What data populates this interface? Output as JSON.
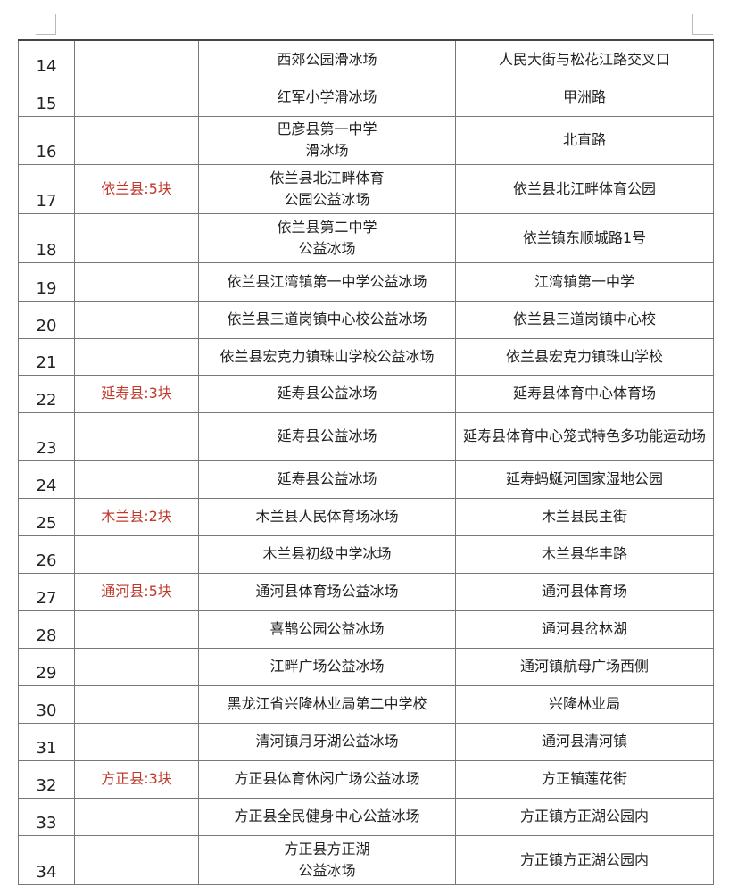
{
  "rows": [
    {
      "no": "14",
      "county": "",
      "name": "西郊公园滑冰场",
      "address": "人民大街与松花江路交叉口"
    },
    {
      "no": "15",
      "county": "",
      "name": "红军小学滑冰场",
      "address": "甲洲路"
    },
    {
      "no": "16",
      "county": "",
      "name": "巴彦县第一中学\n滑冰场",
      "address": "北直路"
    },
    {
      "no": "17",
      "county": "依兰县:5块",
      "name": "依兰县北江畔体育\n公园公益冰场",
      "address": "依兰县北江畔体育公园"
    },
    {
      "no": "18",
      "county": "",
      "name": "依兰县第二中学\n公益冰场",
      "address": "依兰镇东顺城路1号"
    },
    {
      "no": "19",
      "county": "",
      "name": "依兰县江湾镇第一中学公益冰场",
      "address": "江湾镇第一中学"
    },
    {
      "no": "20",
      "county": "",
      "name": "依兰县三道岗镇中心校公益冰场",
      "address": "依兰县三道岗镇中心校"
    },
    {
      "no": "21",
      "county": "",
      "name": "依兰县宏克力镇珠山学校公益冰场",
      "address": "依兰县宏克力镇珠山学校"
    },
    {
      "no": "22",
      "county": "延寿县:3块",
      "name": "延寿县公益冰场",
      "address": "延寿县体育中心体育场"
    },
    {
      "no": "23",
      "county": "",
      "name": "延寿县公益冰场",
      "address": "延寿县体育中心笼式特色多功能运动场"
    },
    {
      "no": "24",
      "county": "",
      "name": "延寿县公益冰场",
      "address": "延寿蚂蜒河国家湿地公园"
    },
    {
      "no": "25",
      "county": "木兰县:2块",
      "name": "木兰县人民体育场冰场",
      "address": "木兰县民主街"
    },
    {
      "no": "26",
      "county": "",
      "name": "木兰县初级中学冰场",
      "address": "木兰县华丰路"
    },
    {
      "no": "27",
      "county": "通河县:5块",
      "name": "通河县体育场公益冰场",
      "address": "通河县体育场"
    },
    {
      "no": "28",
      "county": "",
      "name": "喜鹊公园公益冰场",
      "address": "通河县岔林湖"
    },
    {
      "no": "29",
      "county": "",
      "name": "江畔广场公益冰场",
      "address": "通河镇航母广场西侧"
    },
    {
      "no": "30",
      "county": "",
      "name": "黑龙江省兴隆林业局第二中学校",
      "address": "兴隆林业局"
    },
    {
      "no": "31",
      "county": "",
      "name": "清河镇月牙湖公益冰场",
      "address": "通河县清河镇"
    },
    {
      "no": "32",
      "county": "方正县:3块",
      "name": "方正县体育休闲广场公益冰场",
      "address": "方正镇莲花街"
    },
    {
      "no": "33",
      "county": "",
      "name": "方正县全民健身中心公益冰场",
      "address": "方正镇方正湖公园内"
    },
    {
      "no": "34",
      "county": "",
      "name": "方正县方正湖\n公益冰场",
      "address": "方正镇方正湖公园内"
    }
  ],
  "colors": {
    "county_text": "#c0392b",
    "border": "#777777"
  }
}
